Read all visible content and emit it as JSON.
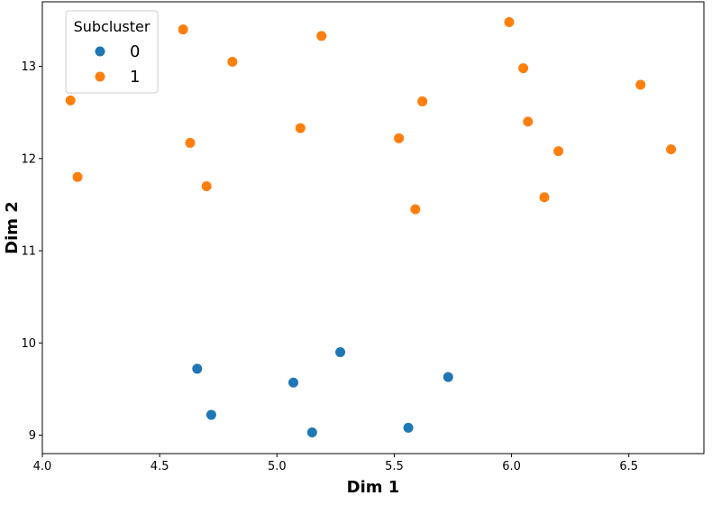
{
  "chart_data": {
    "type": "scatter",
    "xlabel": "Dim 1",
    "ylabel": "Dim 2",
    "xlim": [
      4.0,
      6.82
    ],
    "ylim": [
      8.8,
      13.7
    ],
    "x_ticks": [
      4.0,
      4.5,
      5.0,
      5.5,
      6.0,
      6.5
    ],
    "x_tick_labels": [
      "4.0",
      "4.5",
      "5.0",
      "5.5",
      "6.0",
      "6.5"
    ],
    "y_ticks": [
      9,
      10,
      11,
      12,
      13
    ],
    "y_tick_labels": [
      "9",
      "10",
      "11",
      "12",
      "13"
    ],
    "grid": false,
    "legend": {
      "title": "Subcluster",
      "placement": "top-left"
    },
    "series": [
      {
        "name": "0",
        "color": "#1f77b4",
        "points": [
          [
            4.66,
            9.72
          ],
          [
            4.72,
            9.22
          ],
          [
            5.07,
            9.57
          ],
          [
            5.15,
            9.03
          ],
          [
            5.27,
            9.9
          ],
          [
            5.56,
            9.08
          ],
          [
            5.73,
            9.63
          ]
        ]
      },
      {
        "name": "1",
        "color": "#ff7f0e",
        "points": [
          [
            4.12,
            12.63
          ],
          [
            4.15,
            11.8
          ],
          [
            4.6,
            13.4
          ],
          [
            4.63,
            12.17
          ],
          [
            4.7,
            11.7
          ],
          [
            4.81,
            13.05
          ],
          [
            5.1,
            12.33
          ],
          [
            5.19,
            13.33
          ],
          [
            5.52,
            12.22
          ],
          [
            5.59,
            11.45
          ],
          [
            5.62,
            12.62
          ],
          [
            5.99,
            13.48
          ],
          [
            6.05,
            12.98
          ],
          [
            6.07,
            12.4
          ],
          [
            6.14,
            11.58
          ],
          [
            6.2,
            12.08
          ],
          [
            6.55,
            12.8
          ],
          [
            6.68,
            12.1
          ]
        ]
      }
    ]
  }
}
